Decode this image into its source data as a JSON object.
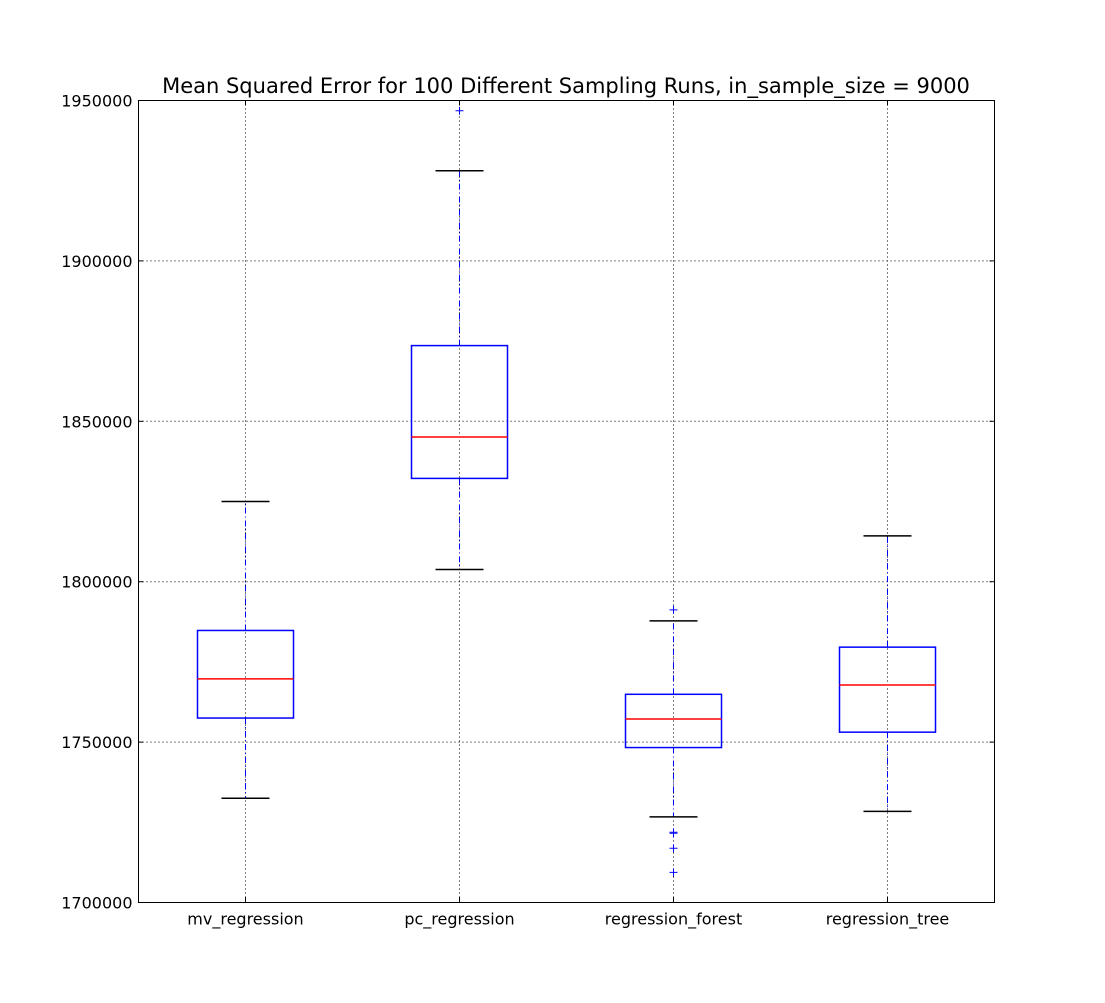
{
  "chart_data": {
    "type": "box",
    "title": "Mean Squared Error for 100 Different Sampling Runs, in_sample_size = 9000",
    "xlabel": "",
    "ylabel": "",
    "ylim": [
      1700000,
      1950000
    ],
    "yticks": [
      1700000,
      1750000,
      1800000,
      1850000,
      1900000,
      1950000
    ],
    "ytick_labels": [
      "1700000",
      "1750000",
      "1800000",
      "1850000",
      "1900000",
      "1950000"
    ],
    "grid": true,
    "categories": [
      "mv_regression",
      "pc_regression",
      "regression_forest",
      "regression_tree"
    ],
    "boxes": [
      {
        "category": "mv_regression",
        "whisker_low": 1732500,
        "q1": 1757500,
        "median": 1769700,
        "q3": 1784800,
        "whisker_high": 1825000,
        "outliers": []
      },
      {
        "category": "pc_regression",
        "whisker_low": 1803800,
        "q1": 1832200,
        "median": 1845100,
        "q3": 1873600,
        "whisker_high": 1928100,
        "outliers": [
          1946800
        ]
      },
      {
        "category": "regression_forest",
        "whisker_low": 1726700,
        "q1": 1748300,
        "median": 1757200,
        "q3": 1764900,
        "whisker_high": 1787800,
        "outliers": [
          1791200,
          1721900,
          1721600,
          1716900,
          1709400
        ]
      },
      {
        "category": "regression_tree",
        "whisker_low": 1728400,
        "q1": 1753100,
        "median": 1767800,
        "q3": 1779600,
        "whisker_high": 1814300,
        "outliers": []
      }
    ],
    "colors": {
      "box": "#0000ff",
      "median": "#ff0000",
      "whisker": "#0000ff",
      "cap": "#000000",
      "outlier": "#0000ff",
      "grid": "#000000"
    }
  }
}
